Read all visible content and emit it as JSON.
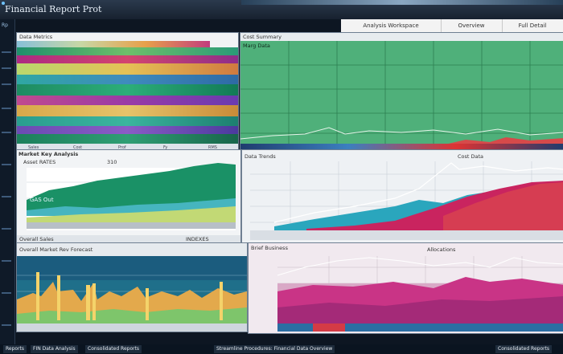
{
  "window": {
    "title": "Financial Report Prot"
  },
  "tabs": [
    {
      "label": "Analysis Workspace"
    },
    {
      "label": "Overview"
    },
    {
      "label": "Full Detail"
    }
  ],
  "sidebar": {
    "label": "Rp"
  },
  "panels": {
    "top_left": {
      "header": "Data Metrics",
      "footer_labels": [
        "Sales",
        "Cost",
        "Prof",
        "Fy",
        "RMS"
      ]
    },
    "top_right": {
      "header": "Cost Summary",
      "subheader": "Marg Data"
    },
    "mid_left": {
      "header": "Market Key Analysis",
      "subheader": "Asset RATES",
      "value": "310",
      "caption": "GAS Out",
      "footer": "Overall Sales",
      "footer_right": "INDEXES"
    },
    "mid_right": {
      "header": "Data Trends",
      "title": "Cost Data"
    },
    "bottom_left": {
      "header": "Overall Market Rev Forecast"
    },
    "bottom_right": {
      "header": "Brief Business",
      "title": "Allocations"
    }
  },
  "footer": {
    "items": [
      "Reports",
      "FIN Data Analysis",
      "Consolidated Reports",
      "Streamline Procedures: Financial Data Overview",
      "Consolidated Reports"
    ]
  },
  "colors": {
    "accent": "#1a8a6a",
    "magenta": "#c2227a",
    "teal": "#28a3b8",
    "gold": "#e4b03a"
  }
}
